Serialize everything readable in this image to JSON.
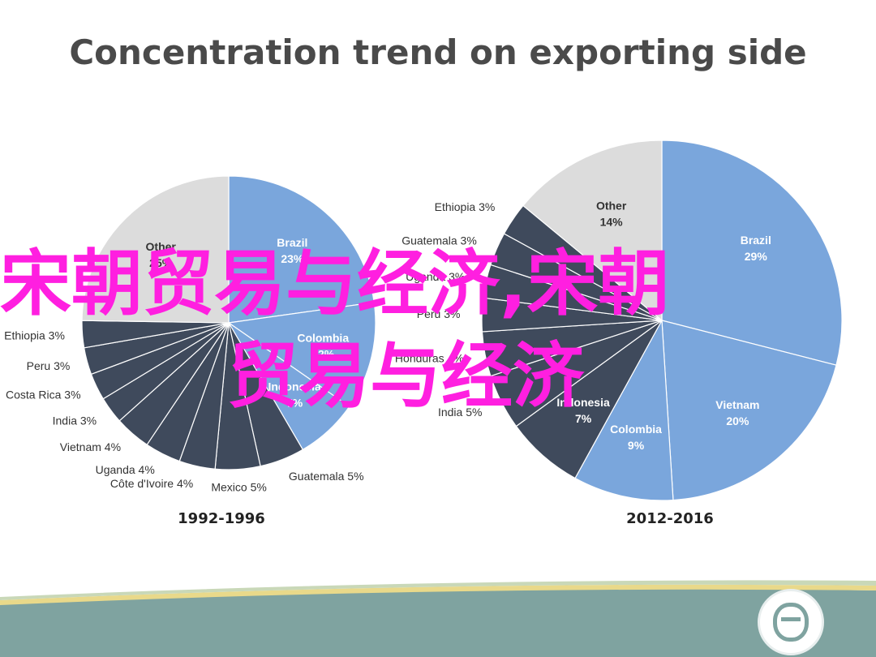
{
  "title": "Concentration trend on exporting side",
  "watermark": {
    "line1": "宋朝贸易与经济,宋朝",
    "line2": "贸易与经济"
  },
  "chart_data": [
    {
      "type": "pie",
      "period": "1992-1996",
      "slices": [
        {
          "label": "Brazil",
          "value": 23,
          "color": "#7aa6dc"
        },
        {
          "label": "Colombia",
          "value": 12,
          "color": "#7aa6dc"
        },
        {
          "label": "Indonesia",
          "value": 7,
          "color": "#7aa6dc"
        },
        {
          "label": "Guatemala",
          "value": 5,
          "color": "#3f4a5c"
        },
        {
          "label": "Mexico",
          "value": 5,
          "color": "#3f4a5c"
        },
        {
          "label": "Côte d'Ivoire",
          "value": 4,
          "color": "#3f4a5c"
        },
        {
          "label": "Uganda",
          "value": 4,
          "color": "#3f4a5c"
        },
        {
          "label": "Vietnam",
          "value": 4,
          "color": "#3f4a5c"
        },
        {
          "label": "India",
          "value": 3,
          "color": "#3f4a5c"
        },
        {
          "label": "Costa Rica",
          "value": 3,
          "color": "#3f4a5c"
        },
        {
          "label": "Peru",
          "value": 3,
          "color": "#3f4a5c"
        },
        {
          "label": "Ethiopia",
          "value": 3,
          "color": "#3f4a5c"
        },
        {
          "label": "Other",
          "value": 25,
          "color": "#dcdcdc"
        }
      ]
    },
    {
      "type": "pie",
      "period": "2012-2016",
      "slices": [
        {
          "label": "Brazil",
          "value": 29,
          "color": "#7aa6dc"
        },
        {
          "label": "Vietnam",
          "value": 20,
          "color": "#7aa6dc"
        },
        {
          "label": "Colombia",
          "value": 9,
          "color": "#7aa6dc"
        },
        {
          "label": "Indonesia",
          "value": 7,
          "color": "#3f4a5c"
        },
        {
          "label": "India",
          "value": 5,
          "color": "#3f4a5c"
        },
        {
          "label": "Honduras",
          "value": 4,
          "color": "#3f4a5c"
        },
        {
          "label": "Peru",
          "value": 3,
          "color": "#3f4a5c"
        },
        {
          "label": "Uganda",
          "value": 3,
          "color": "#3f4a5c"
        },
        {
          "label": "Guatemala",
          "value": 3,
          "color": "#3f4a5c"
        },
        {
          "label": "Ethiopia",
          "value": 3,
          "color": "#3f4a5c"
        },
        {
          "label": "Other",
          "value": 14,
          "color": "#dcdcdc"
        }
      ]
    }
  ],
  "colors": {
    "major": "#7aa6dc",
    "minor": "#3f4a5c",
    "other": "#dcdcdc",
    "footer": "#7fa3a0",
    "watermark": "#ff1fe0"
  }
}
